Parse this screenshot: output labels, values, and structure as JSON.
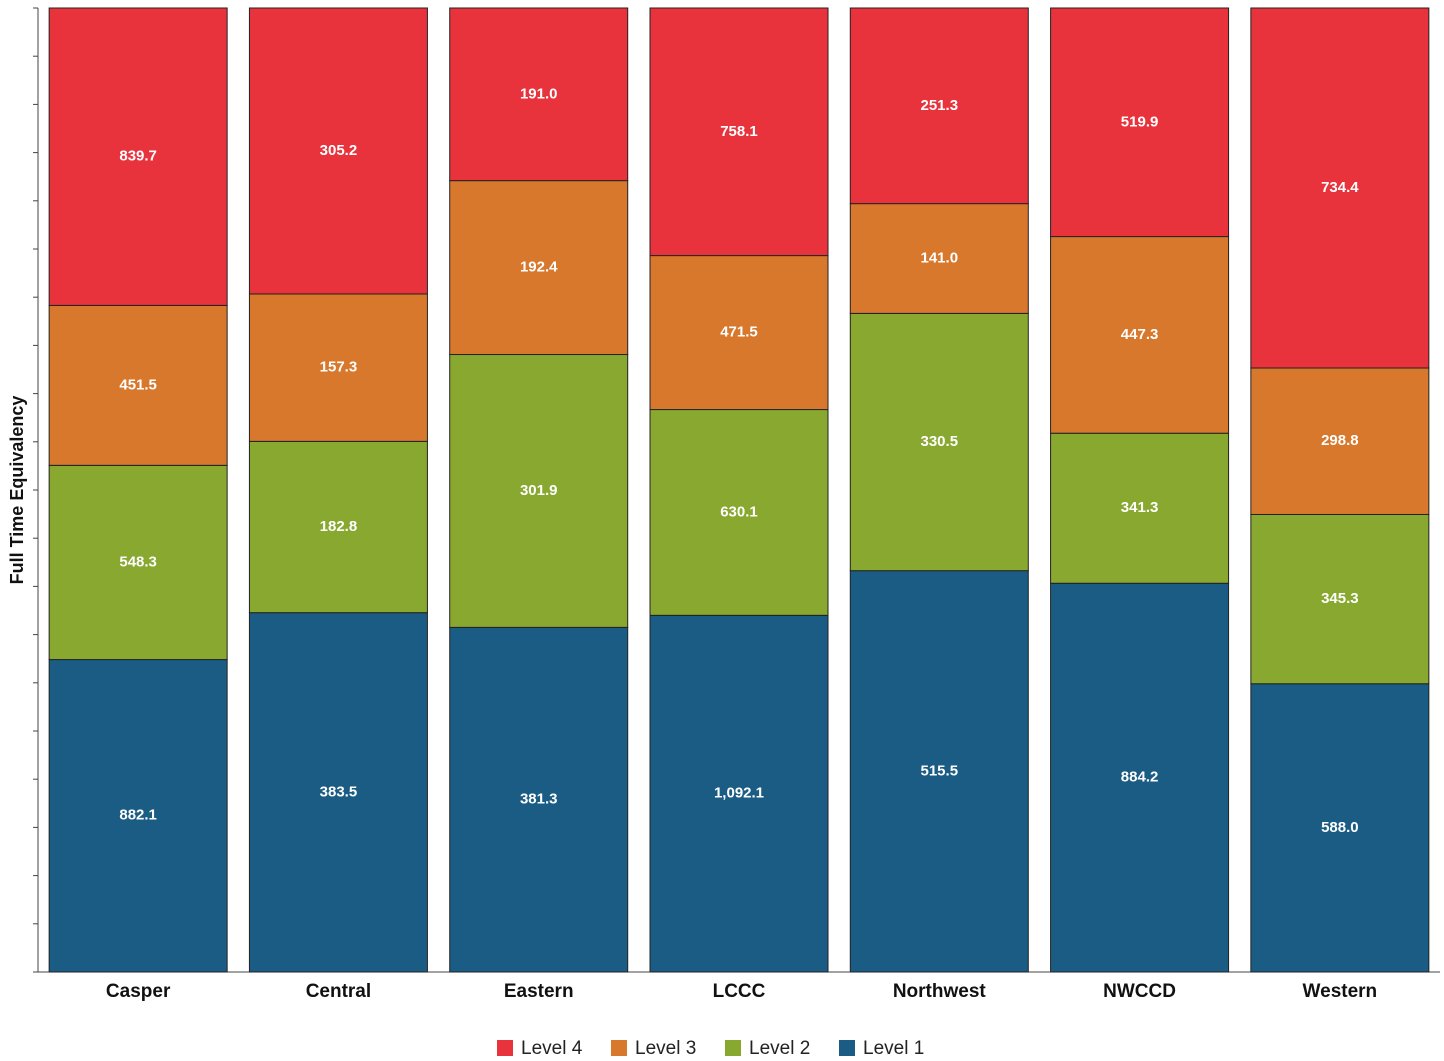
{
  "chart_data": {
    "type": "bar",
    "stack": "percent",
    "y_label": "Full Time Equivalency",
    "categories": [
      "Casper",
      "Central",
      "Eastern",
      "LCCC",
      "Northwest",
      "NWCCD",
      "Western"
    ],
    "series": [
      {
        "name": "Level 4",
        "color": "#e8323c",
        "values": [
          839.7,
          305.2,
          191.0,
          758.1,
          251.3,
          519.9,
          734.4
        ],
        "value_labels": [
          "839.7",
          "305.2",
          "191.0",
          "758.1",
          "251.3",
          "519.9",
          "734.4"
        ]
      },
      {
        "name": "Level 3",
        "color": "#d8782c",
        "values": [
          451.5,
          157.3,
          192.4,
          471.5,
          141.0,
          447.3,
          298.8
        ],
        "value_labels": [
          "451.5",
          "157.3",
          "192.4",
          "471.5",
          "141.0",
          "447.3",
          "298.8"
        ]
      },
      {
        "name": "Level 2",
        "color": "#88a830",
        "values": [
          548.3,
          182.8,
          301.9,
          630.1,
          330.5,
          341.3,
          345.3
        ]
      },
      {
        "name": "Level 1",
        "color": "#1b5c84",
        "values": [
          882.1,
          383.5,
          381.3,
          1092.1,
          515.5,
          884.2,
          588.0
        ],
        "value_labels": [
          "882.1",
          "383.5",
          "381.3",
          "1,092.1",
          "515.5",
          "884.2",
          "588.0"
        ]
      }
    ],
    "ylim": [
      0,
      100
    ],
    "yticks": [
      0,
      5,
      10,
      15,
      20,
      25,
      30,
      35,
      40,
      45,
      50,
      55,
      60,
      65,
      70,
      75,
      80,
      85,
      90,
      95,
      100
    ],
    "legend": "bottom"
  }
}
